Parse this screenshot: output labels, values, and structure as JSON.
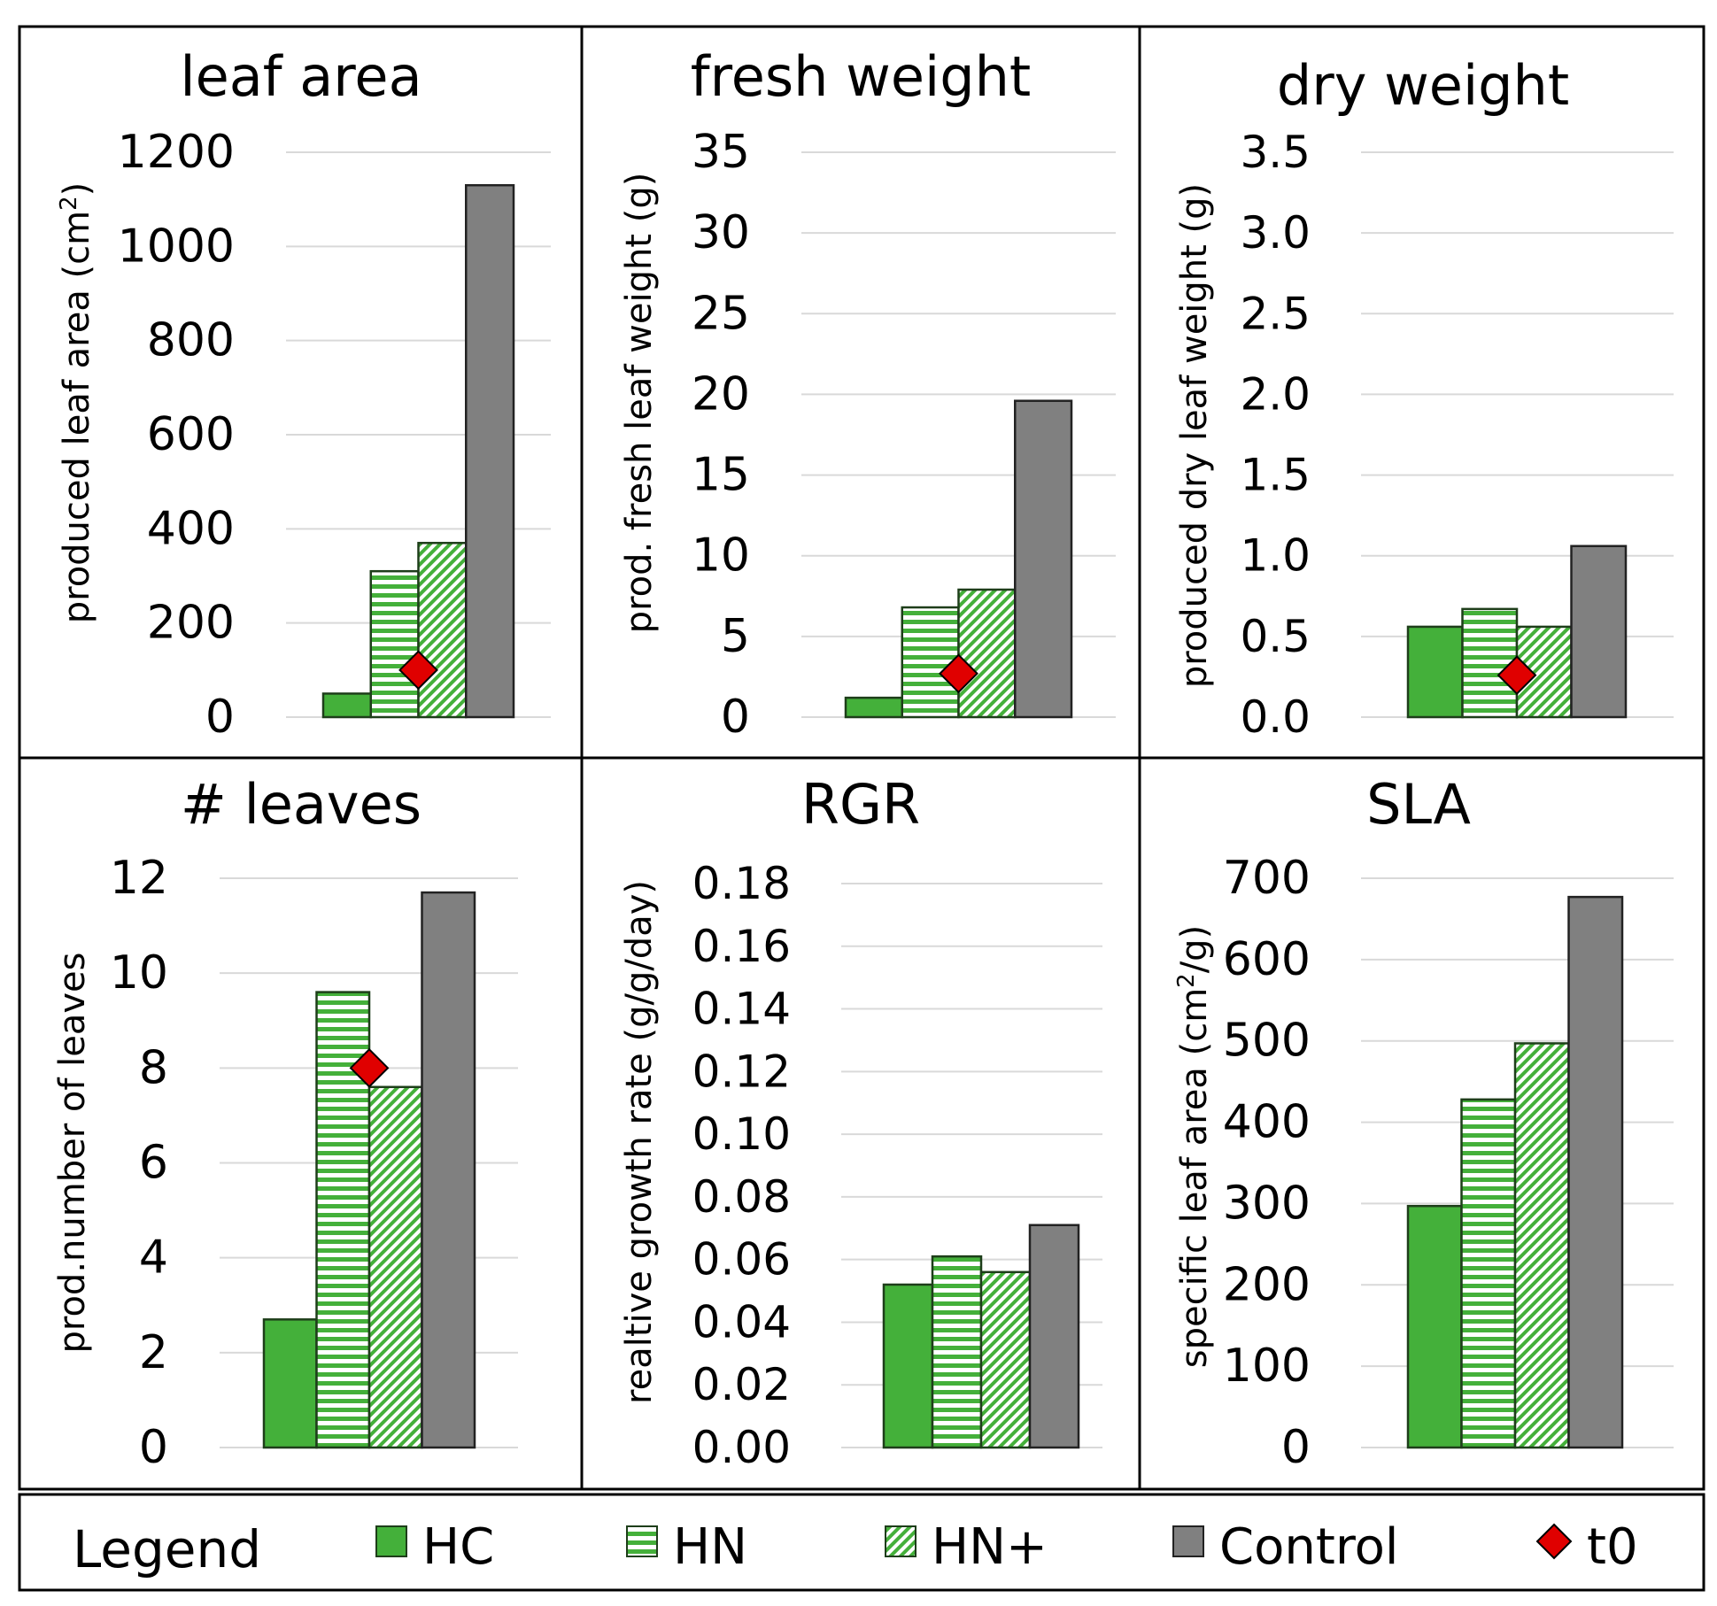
{
  "legend": {
    "title": "Legend",
    "items": [
      {
        "key": "HC",
        "label": "HC"
      },
      {
        "key": "HN",
        "label": "HN"
      },
      {
        "key": "HNplus",
        "label": "HN+"
      },
      {
        "key": "Control",
        "label": "Control"
      },
      {
        "key": "t0",
        "label": "t0"
      }
    ]
  },
  "colors": {
    "green": "#44b03a",
    "green_stroke": "#1e3e1a",
    "grey": "#808080",
    "grey_stroke": "#222222",
    "marker": "#e00000",
    "grid": "#d9d9d9",
    "frame": "#000000"
  },
  "chart_data": [
    {
      "type": "bar",
      "title": "leaf area",
      "ylabel": "produced leaf area (cm",
      "ylabel_sup": "2",
      "ylabel_tail": ")",
      "categories": [
        "HC",
        "HN",
        "HN+",
        "Control"
      ],
      "values": [
        50,
        310,
        370,
        1130
      ],
      "t0": 100,
      "ylim": [
        0,
        1200
      ],
      "yticks": [
        0,
        200,
        400,
        600,
        800,
        1000,
        1200
      ],
      "ytick_labels": [
        "0",
        "200",
        "400",
        "600",
        "800",
        "1000",
        "1200"
      ]
    },
    {
      "type": "bar",
      "title": "fresh weight",
      "ylabel": "prod. fresh leaf weight (g)",
      "categories": [
        "HC",
        "HN",
        "HN+",
        "Control"
      ],
      "values": [
        1.2,
        6.8,
        7.9,
        19.6
      ],
      "t0": 2.7,
      "ylim": [
        0,
        35
      ],
      "yticks": [
        0,
        5,
        10,
        15,
        20,
        25,
        30,
        35
      ],
      "ytick_labels": [
        "0",
        "5",
        "10",
        "15",
        "20",
        "25",
        "30",
        "35"
      ]
    },
    {
      "type": "bar",
      "title": "dry weight",
      "ylabel": "produced dry leaf weight (g)",
      "categories": [
        "HC",
        "HN",
        "HN+",
        "Control"
      ],
      "values": [
        0.56,
        0.67,
        0.56,
        1.06
      ],
      "t0": 0.26,
      "ylim": [
        0,
        3.5
      ],
      "yticks": [
        0,
        0.5,
        1,
        1.5,
        2,
        2.5,
        3,
        3.5
      ],
      "ytick_labels": [
        "0.0",
        "0.5",
        "1.0",
        "1.5",
        "2.0",
        "2.5",
        "3.0",
        "3.5"
      ]
    },
    {
      "type": "bar",
      "title": "# leaves",
      "ylabel": "prod.number of leaves",
      "categories": [
        "HC",
        "HN",
        "HN+",
        "Control"
      ],
      "values": [
        2.7,
        9.6,
        7.6,
        11.7
      ],
      "t0": 8,
      "ylim": [
        0,
        12
      ],
      "yticks": [
        0,
        2,
        4,
        6,
        8,
        10,
        12
      ],
      "ytick_labels": [
        "0",
        "2",
        "4",
        "6",
        "8",
        "10",
        "12"
      ]
    },
    {
      "type": "bar",
      "title": "RGR",
      "ylabel": "realtive growth rate (g/g/day)",
      "categories": [
        "HC",
        "HN",
        "HN+",
        "Control"
      ],
      "values": [
        0.052,
        0.061,
        0.056,
        0.071
      ],
      "t0": null,
      "ylim": [
        0,
        0.18
      ],
      "yticks": [
        0,
        0.02,
        0.04,
        0.06,
        0.08,
        0.1,
        0.12,
        0.14,
        0.16,
        0.18
      ],
      "ytick_labels": [
        "0.00",
        "0.02",
        "0.04",
        "0.06",
        "0.08",
        "0.10",
        "0.12",
        "0.14",
        "0.16",
        "0.18"
      ]
    },
    {
      "type": "bar",
      "title": "SLA",
      "ylabel": "specific leaf area (cm",
      "ylabel_sup": "2",
      "ylabel_tail": "/g)",
      "categories": [
        "HC",
        "HN",
        "HN+",
        "Control"
      ],
      "values": [
        297,
        428,
        497,
        677
      ],
      "t0": null,
      "ylim": [
        0,
        700
      ],
      "yticks": [
        0,
        100,
        200,
        300,
        400,
        500,
        600,
        700
      ],
      "ytick_labels": [
        "0",
        "100",
        "200",
        "300",
        "400",
        "500",
        "600",
        "700"
      ]
    }
  ]
}
